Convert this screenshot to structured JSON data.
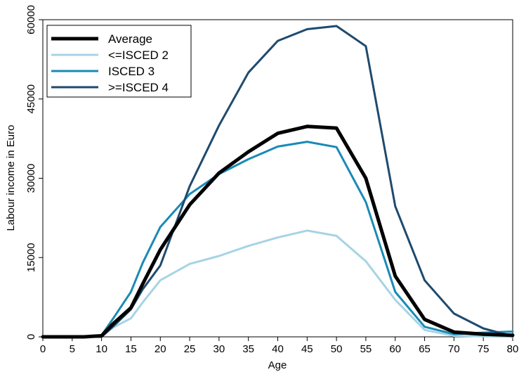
{
  "chart_data": {
    "type": "line",
    "title": "",
    "xlabel": "Age",
    "ylabel": "Labour income in Euro",
    "xlim": [
      0,
      80
    ],
    "ylim": [
      0,
      60000
    ],
    "xticks": [
      0,
      5,
      10,
      15,
      20,
      25,
      30,
      35,
      40,
      45,
      50,
      55,
      60,
      65,
      70,
      75,
      80
    ],
    "yticks": [
      0,
      15000,
      30000,
      45000,
      60000
    ],
    "x": [
      0,
      3,
      7,
      10,
      12,
      15,
      17,
      20,
      25,
      30,
      35,
      40,
      45,
      50,
      55,
      60,
      65,
      70,
      75,
      80
    ],
    "grid": false,
    "legend_position": "top-left",
    "series": [
      {
        "name": "Average",
        "color": "#000000",
        "width": 5,
        "values": [
          0,
          0,
          0,
          200,
          2500,
          5500,
          10000,
          16500,
          25000,
          31000,
          35000,
          38500,
          39800,
          39500,
          30000,
          11500,
          3300,
          900,
          500,
          300
        ]
      },
      {
        "name": "<=ISCED 2",
        "color": "#a6d4e4",
        "width": 3,
        "values": [
          0,
          0,
          0,
          200,
          1800,
          3500,
          6500,
          10700,
          13800,
          15300,
          17200,
          18800,
          20100,
          19100,
          14300,
          7000,
          1300,
          200,
          100,
          0
        ]
      },
      {
        "name": "ISCED 3",
        "color": "#1a8ab5",
        "width": 3,
        "values": [
          0,
          0,
          0,
          300,
          3500,
          8500,
          14000,
          20800,
          27000,
          30800,
          33600,
          36000,
          36900,
          35900,
          25500,
          8500,
          1900,
          500,
          800,
          1000
        ]
      },
      {
        "name": ">=ISCED 4",
        "color": "#1e4a6e",
        "width": 3,
        "values": [
          0,
          0,
          0,
          0,
          2000,
          5200,
          9000,
          13500,
          28500,
          40000,
          50000,
          56000,
          58200,
          58800,
          55000,
          24700,
          10700,
          4400,
          1600,
          100
        ]
      }
    ]
  }
}
